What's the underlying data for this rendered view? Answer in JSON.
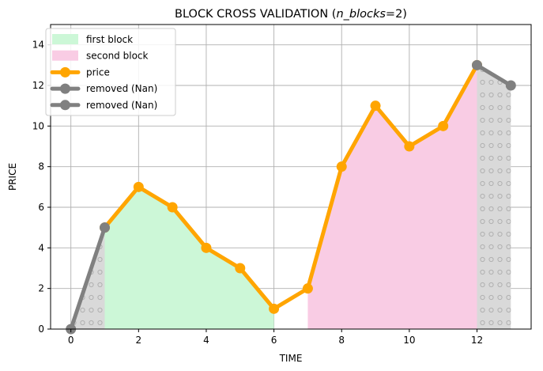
{
  "chart_data": {
    "type": "line",
    "title_prefix": "BLOCK CROSS VALIDATION (",
    "title_italic": "n_blocks",
    "title_suffix": "=2)",
    "xlabel": "TIME",
    "ylabel": "PRICE",
    "xlim": [
      -0.6,
      13.6
    ],
    "ylim": [
      0,
      15
    ],
    "xticks": [
      0,
      2,
      4,
      6,
      8,
      10,
      12
    ],
    "yticks": [
      0,
      2,
      4,
      6,
      8,
      10,
      12,
      14
    ],
    "grid": true,
    "legend_position": "upper-left",
    "legend": [
      {
        "label": "first block",
        "kind": "patch",
        "color": "#ccf7d7"
      },
      {
        "label": "second block",
        "kind": "patch",
        "color": "#f9cce4"
      },
      {
        "label": "price",
        "kind": "line",
        "color": "#ffa500"
      },
      {
        "label": "removed (Nan)",
        "kind": "line",
        "color": "#808080"
      },
      {
        "label": "removed (Nan)",
        "kind": "line",
        "color": "#808080"
      }
    ],
    "series": [
      {
        "name": "price",
        "color": "#ffa500",
        "x": [
          1,
          2,
          3,
          4,
          5,
          6,
          7,
          8,
          9,
          10,
          11,
          12
        ],
        "y": [
          5,
          7,
          6,
          4,
          3,
          1,
          2,
          8,
          11,
          9,
          10,
          13
        ]
      },
      {
        "name": "removed (Nan)",
        "color": "#808080",
        "x": [
          0,
          1
        ],
        "y": [
          0,
          5
        ]
      },
      {
        "name": "removed (Nan)",
        "color": "#808080",
        "x": [
          12,
          13
        ],
        "y": [
          13,
          12
        ]
      }
    ],
    "areas": [
      {
        "name": "first block",
        "color": "#ccf7d7",
        "x": [
          1,
          2,
          3,
          4,
          5,
          6
        ],
        "y": [
          5,
          7,
          6,
          4,
          3,
          1
        ]
      },
      {
        "name": "second block",
        "color": "#f9cce4",
        "x": [
          7,
          8,
          9,
          10,
          11,
          12
        ],
        "y": [
          2,
          8,
          11,
          9,
          10,
          13
        ]
      },
      {
        "name": "removed-start",
        "color": "#d9d9d9",
        "hatch": "circles",
        "x": [
          0,
          1
        ],
        "y": [
          0,
          5
        ]
      },
      {
        "name": "removed-end",
        "color": "#d9d9d9",
        "hatch": "circles",
        "x": [
          12,
          13
        ],
        "y": [
          13,
          12
        ]
      }
    ]
  }
}
